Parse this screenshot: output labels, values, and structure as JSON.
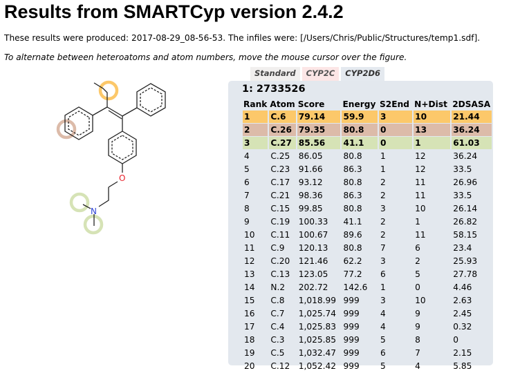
{
  "page": {
    "title": "Results from SMARTCyp version 2.4.2",
    "produced_text": "These results were produced: 2017-08-29_08-56-53. The infiles were: [/Users/Chris/Public/Structures/temp1.sdf].",
    "hint_text": "To alternate between heteroatoms and atom numbers, move the mouse cursor over the figure."
  },
  "tabs": [
    {
      "label": "Standard"
    },
    {
      "label": "CYP2C"
    },
    {
      "label": "CYP2D6"
    }
  ],
  "molecule": {
    "id_label": "1: 2733526",
    "atoms": {
      "O": "O",
      "N": "N"
    },
    "highlight_colors": {
      "rank1": "#fcc86a",
      "rank2": "#dcbba9",
      "rank3": "#d6e3b6"
    }
  },
  "table": {
    "headers": [
      "Rank",
      "Atom",
      "Score",
      "Energy",
      "S2End",
      "N+Dist",
      "2DSASA"
    ],
    "rows": [
      [
        "1",
        "C.6",
        "79.14",
        "59.9",
        "3",
        "10",
        "21.44"
      ],
      [
        "2",
        "C.26",
        "79.35",
        "80.8",
        "0",
        "13",
        "36.24"
      ],
      [
        "3",
        "C.27",
        "85.56",
        "41.1",
        "0",
        "1",
        "61.03"
      ],
      [
        "4",
        "C.25",
        "86.05",
        "80.8",
        "1",
        "12",
        "36.24"
      ],
      [
        "5",
        "C.23",
        "91.66",
        "86.3",
        "1",
        "12",
        "33.5"
      ],
      [
        "6",
        "C.17",
        "93.12",
        "80.8",
        "2",
        "11",
        "26.96"
      ],
      [
        "7",
        "C.21",
        "98.36",
        "86.3",
        "2",
        "11",
        "33.5"
      ],
      [
        "8",
        "C.15",
        "99.85",
        "80.8",
        "3",
        "10",
        "26.14"
      ],
      [
        "9",
        "C.19",
        "100.33",
        "41.1",
        "2",
        "1",
        "26.82"
      ],
      [
        "10",
        "C.11",
        "100.67",
        "89.6",
        "2",
        "11",
        "58.15"
      ],
      [
        "11",
        "C.9",
        "120.13",
        "80.8",
        "7",
        "6",
        "23.4"
      ],
      [
        "12",
        "C.20",
        "121.46",
        "62.2",
        "3",
        "2",
        "25.93"
      ],
      [
        "13",
        "C.13",
        "123.05",
        "77.2",
        "6",
        "5",
        "27.78"
      ],
      [
        "14",
        "N.2",
        "202.72",
        "142.6",
        "1",
        "0",
        "4.46"
      ],
      [
        "15",
        "C.8",
        "1,018.99",
        "999",
        "3",
        "10",
        "2.63"
      ],
      [
        "16",
        "C.7",
        "1,025.74",
        "999",
        "4",
        "9",
        "2.45"
      ],
      [
        "17",
        "C.4",
        "1,025.83",
        "999",
        "4",
        "9",
        "0.32"
      ],
      [
        "18",
        "C.3",
        "1,025.85",
        "999",
        "5",
        "8",
        "0"
      ],
      [
        "19",
        "C.5",
        "1,032.47",
        "999",
        "6",
        "7",
        "2.15"
      ],
      [
        "20",
        "C.12",
        "1,052.42",
        "999",
        "5",
        "4",
        "5.85"
      ]
    ]
  }
}
